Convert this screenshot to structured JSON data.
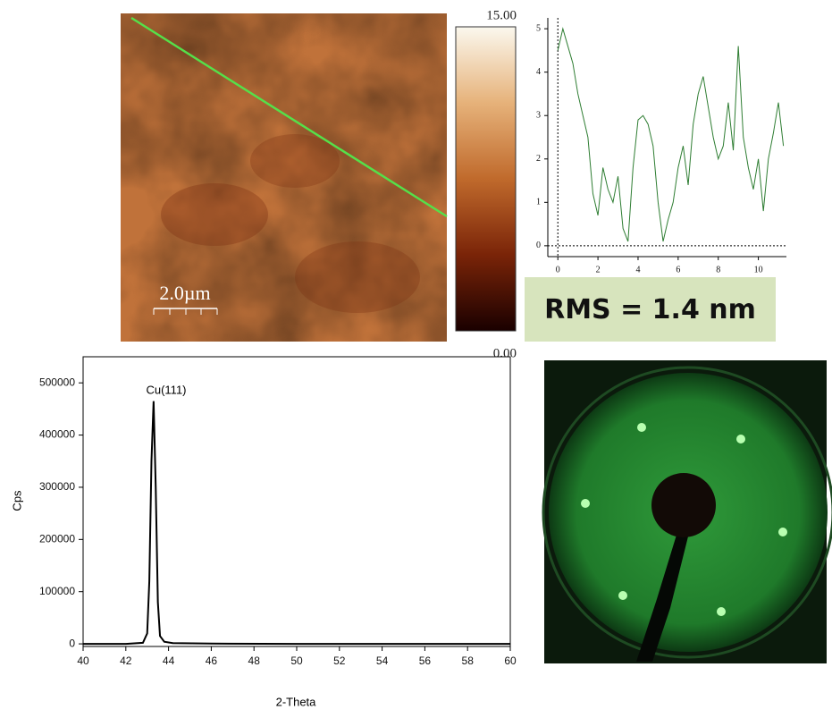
{
  "chart_data": [
    {
      "type": "heatmap",
      "scale_bar_label": "2.0µm",
      "colormap": [
        "#1a0000",
        "#7a2408",
        "#c06a2c",
        "#e6b27a",
        "#fbf8ee"
      ],
      "colorbar_lim": [
        0,
        15
      ],
      "colorbar_ticks": [
        {
          "value": 0,
          "label": "0.00"
        },
        {
          "value": 15,
          "label": "15.00"
        }
      ]
    },
    {
      "type": "line",
      "annotation": "RMS = 1.4 nm",
      "x": [
        0,
        0.25,
        0.5,
        0.75,
        1.0,
        1.25,
        1.5,
        1.75,
        2.0,
        2.25,
        2.5,
        2.75,
        3.0,
        3.25,
        3.5,
        3.75,
        4.0,
        4.25,
        4.5,
        4.75,
        5.0,
        5.25,
        5.5,
        5.75,
        6.0,
        6.25,
        6.5,
        6.75,
        7.0,
        7.25,
        7.5,
        7.75,
        8.0,
        8.25,
        8.5,
        8.75,
        9.0,
        9.25,
        9.5,
        9.75,
        10.0,
        10.25,
        10.5,
        10.75,
        11.0,
        11.25
      ],
      "series": [
        {
          "color": "#2e7d32",
          "values": [
            4.5,
            5.0,
            4.6,
            4.2,
            3.5,
            3.0,
            2.5,
            1.2,
            0.7,
            1.8,
            1.3,
            1.0,
            1.6,
            0.4,
            0.1,
            1.8,
            2.9,
            3.0,
            2.8,
            2.3,
            1.0,
            0.1,
            0.6,
            1.0,
            1.8,
            2.3,
            1.4,
            2.8,
            3.5,
            3.9,
            3.2,
            2.5,
            2.0,
            2.3,
            3.3,
            2.2,
            4.6,
            2.5,
            1.8,
            1.3,
            2.0,
            0.8,
            2.0,
            2.6,
            3.3,
            2.3
          ]
        }
      ],
      "xlim": [
        -0.5,
        11.4
      ],
      "ylim": [
        -0.25,
        5.25
      ],
      "xticks": [
        0,
        2,
        4,
        6,
        8,
        10
      ],
      "yticks": [
        0,
        1,
        2,
        3,
        4,
        5
      ]
    },
    {
      "type": "line",
      "xlabel": "2-Theta",
      "ylabel": "Cps",
      "annotation": "Cu(111)",
      "x": [
        40,
        42,
        42.8,
        43.0,
        43.1,
        43.2,
        43.3,
        43.4,
        43.5,
        43.6,
        43.8,
        44.2,
        46,
        50,
        60
      ],
      "series": [
        {
          "color": "#000000",
          "values": [
            0,
            0,
            2000,
            20000,
            120000,
            350000,
            465000,
            300000,
            80000,
            15000,
            4000,
            1500,
            500,
            0,
            0
          ]
        }
      ],
      "xlim": [
        40,
        60
      ],
      "ylim": [
        -5000,
        550000
      ],
      "xticks": [
        40,
        42,
        44,
        46,
        48,
        50,
        52,
        54,
        56,
        58,
        60
      ],
      "yticks": [
        0,
        100000,
        200000,
        300000,
        400000,
        500000
      ]
    }
  ]
}
